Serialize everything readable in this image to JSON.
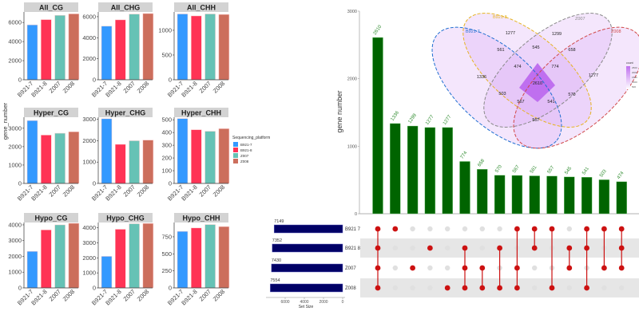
{
  "chart_data": [
    {
      "type": "bar",
      "ylabel": "gene_number",
      "legend": {
        "title": "Sequencing_platform",
        "position": "right",
        "entries": [
          "B921-7",
          "B921-8",
          "Z007",
          "Z008"
        ]
      },
      "colors": {
        "B921-7": "#3399ff",
        "B921-8": "#ff3355",
        "Z007": "#66c2b5",
        "Z008": "#cc6e5c"
      },
      "categories": [
        "B921-7",
        "B921-8",
        "Z007",
        "Z008"
      ],
      "panels": [
        {
          "title": "All_CG",
          "values": [
            5750,
            6300,
            6750,
            6900
          ],
          "ylim": [
            0,
            7100
          ],
          "yticks": [
            0,
            2000,
            4000,
            6000
          ]
        },
        {
          "title": "All_CHG",
          "values": [
            5100,
            5700,
            6250,
            6300
          ],
          "ylim": [
            0,
            6450
          ],
          "yticks": [
            0,
            2000,
            4000,
            6000
          ]
        },
        {
          "title": "All_CHH",
          "values": [
            1330,
            1290,
            1330,
            1320
          ],
          "ylim": [
            0,
            1370
          ],
          "yticks": [
            0,
            500,
            1000
          ]
        },
        {
          "title": "Hyper_CG",
          "values": [
            3420,
            2630,
            2730,
            2810
          ],
          "ylim": [
            0,
            3600
          ],
          "yticks": [
            0,
            1000,
            2000,
            3000
          ]
        },
        {
          "title": "Hyper_CHG",
          "values": [
            3030,
            1830,
            2000,
            2030
          ],
          "ylim": [
            0,
            3100
          ],
          "yticks": [
            0,
            1000,
            2000,
            3000
          ]
        },
        {
          "title": "Hyper_CHH",
          "values": [
            510,
            422,
            410,
            430
          ],
          "ylim": [
            0,
            520
          ],
          "yticks": [
            0,
            100,
            200,
            300,
            400,
            500
          ]
        },
        {
          "title": "Hypo_CG",
          "values": [
            2320,
            3680,
            4000,
            4100
          ],
          "ylim": [
            0,
            4150
          ],
          "yticks": [
            0,
            1000,
            2000,
            3000,
            4000
          ]
        },
        {
          "title": "Hypo_CHG",
          "values": [
            2100,
            3900,
            4270,
            4290
          ],
          "ylim": [
            0,
            4350
          ],
          "yticks": [
            0,
            1000,
            2000,
            3000,
            4000
          ]
        },
        {
          "title": "Hypo_CHH",
          "values": [
            830,
            880,
            930,
            900
          ],
          "ylim": [
            0,
            960
          ],
          "yticks": [
            0,
            250,
            500,
            750
          ]
        }
      ]
    },
    {
      "type": "bar",
      "ylabel": "gene number",
      "ylim": [
        0,
        3000
      ],
      "yticks": [
        0,
        1000,
        2000,
        3000
      ],
      "bar_color": "#006400",
      "dot_color": "#cc1111",
      "values": [
        2610,
        1336,
        1299,
        1277,
        1277,
        774,
        658,
        570,
        567,
        561,
        557,
        545,
        541,
        503,
        474
      ],
      "data_labels": [
        "2610",
        "1336",
        "1299",
        "1277",
        "1277",
        "774",
        "658",
        "570",
        "567",
        "561",
        "557",
        "545",
        "541",
        "503",
        "474"
      ],
      "sets": [
        "B921 7",
        "B921 8",
        "Z007",
        "Z008"
      ],
      "membership": [
        [
          0,
          1,
          2,
          3
        ],
        [
          0
        ],
        [
          2
        ],
        [
          1
        ],
        [
          3
        ],
        [
          1,
          2,
          3
        ],
        [
          2,
          3
        ],
        [
          1,
          3
        ],
        [
          0,
          2,
          3
        ],
        [
          0,
          1
        ],
        [
          0,
          3
        ],
        [
          1,
          2
        ],
        [
          0,
          1,
          3
        ],
        [
          0,
          2
        ],
        [
          0,
          1,
          2
        ]
      ],
      "set_sizes": {
        "values": [
          7149,
          7352,
          7430,
          7554
        ],
        "labels": [
          "7149",
          "7352",
          "7430",
          "7554"
        ],
        "xlabel": "Set Size",
        "ticks": [
          "6000",
          "4000",
          "2000",
          "0"
        ],
        "tick_values": [
          6000,
          4000,
          2000,
          0
        ],
        "bar_color": "#000066"
      }
    },
    {
      "type": "venn",
      "sets": [
        {
          "name": "B921-7",
          "color": "#1f6fd1"
        },
        {
          "name": "B921-8",
          "color": "#e6b422"
        },
        {
          "name": "Z007",
          "color": "#8a8a8a"
        },
        {
          "name": "Z008",
          "color": "#d04848"
        }
      ],
      "regions": [
        {
          "sets": "B921-8",
          "value": "1277"
        },
        {
          "sets": "Z007",
          "value": "1299"
        },
        {
          "sets": "B921-7,B921-8",
          "value": "561"
        },
        {
          "sets": "B921-8,Z007",
          "value": "545"
        },
        {
          "sets": "Z007,Z008",
          "value": "658"
        },
        {
          "sets": "B921-7,B921-8,Z007",
          "value": "474"
        },
        {
          "sets": "B921-8,Z007,Z008",
          "value": "774"
        },
        {
          "sets": "B921-7",
          "value": "1336"
        },
        {
          "sets": "all",
          "value": "2610"
        },
        {
          "sets": "Z008",
          "value": "1277"
        },
        {
          "sets": "B921-7,Z007",
          "value": "503"
        },
        {
          "sets": "B921-7,Z007,Z008",
          "value": "567"
        },
        {
          "sets": "B921-7,B921-8,Z008",
          "value": "541"
        },
        {
          "sets": "B921-8,Z008",
          "value": "570"
        },
        {
          "sets": "B921-7,Z008",
          "value": "557"
        }
      ],
      "legend": {
        "title": "count",
        "ticks": [
          "2500",
          "2000",
          "1500",
          "1000",
          "500"
        ],
        "low_color": "#ffffff",
        "high_color": "#bf6fef"
      }
    }
  ]
}
